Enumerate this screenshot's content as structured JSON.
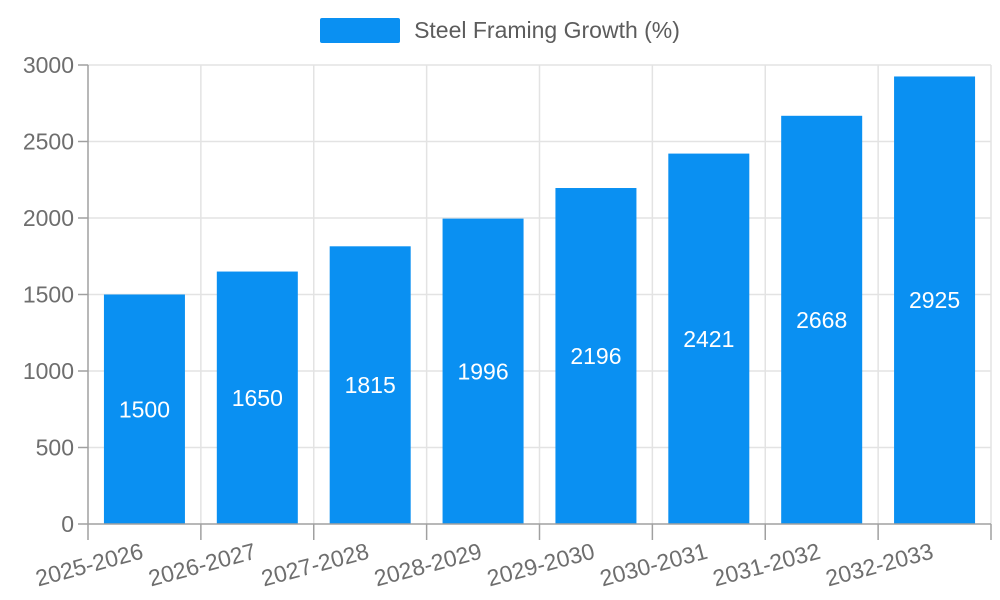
{
  "legend": {
    "label": "Steel Framing Growth (%)"
  },
  "chart_data": {
    "type": "bar",
    "title": "Steel Framing Growth (%)",
    "categories": [
      "2025-2026",
      "2026-2027",
      "2027-2028",
      "2028-2029",
      "2029-2030",
      "2030-2031",
      "2031-2032",
      "2032-2033"
    ],
    "values": [
      1500,
      1650,
      1815,
      1996,
      2196,
      2421,
      2668,
      2925
    ],
    "xlabel": "",
    "ylabel": "",
    "ylim": [
      0,
      3000
    ],
    "ytick_step": 500,
    "grid": true,
    "legend_position": "top-center",
    "x_label_rotation_deg": -15,
    "colors": {
      "bar": "#0A90F2",
      "bar_label": "#FFFFFF",
      "grid_line": "#E3E3E3",
      "axis_line": "#A0A0A0",
      "tick_label": "#6E6E6E",
      "legend_text": "#5C5C5C",
      "background": "#FFFFFF"
    }
  }
}
